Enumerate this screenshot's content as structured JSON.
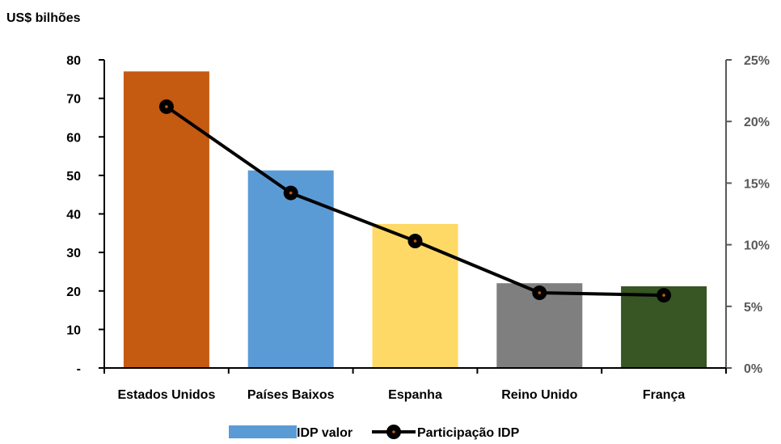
{
  "chart_data": {
    "type": "bar",
    "unit_label": "US$ bilhões",
    "categories": [
      "Estados Unidos",
      "Países Baixos",
      "Espanha",
      "Reino Unido",
      "França"
    ],
    "series": [
      {
        "name": "IDP valor",
        "type": "bar",
        "axis": "left",
        "values": [
          77,
          51.3,
          37.4,
          22,
          21.2
        ],
        "colors": [
          "#C55A11",
          "#5B9BD5",
          "#FFD966",
          "#7F7F7F",
          "#375623"
        ]
      },
      {
        "name": "Participação IDP",
        "type": "line",
        "axis": "right",
        "values": [
          0.212,
          0.142,
          0.103,
          0.061,
          0.059
        ],
        "color": "#000000",
        "marker_center_color": "#C55A11"
      }
    ],
    "left_axis": {
      "ylim": [
        0,
        80
      ],
      "ticks": [
        0,
        10,
        20,
        30,
        40,
        50,
        60,
        70,
        80
      ],
      "tick_labels": [
        "-",
        "10",
        "20",
        "30",
        "40",
        "50",
        "60",
        "70",
        "80"
      ]
    },
    "right_axis": {
      "ylim": [
        0,
        0.25
      ],
      "ticks": [
        0,
        0.05,
        0.1,
        0.15,
        0.2,
        0.25
      ],
      "tick_labels": [
        "0%",
        "5%",
        "10%",
        "15%",
        "20%",
        "25%"
      ],
      "tick_color": "#595959"
    },
    "grid": false,
    "legend_position": "bottom"
  }
}
